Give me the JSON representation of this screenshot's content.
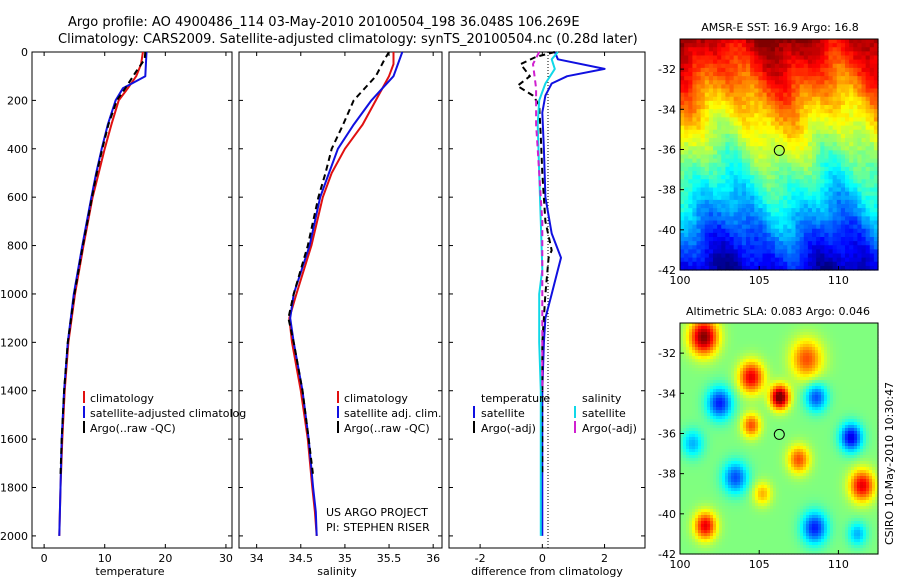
{
  "figure": {
    "title_line1": "Argo profile: AO 4900486_114 03-May-2010 20100504_198 36.048S 106.269E",
    "title_line2": "Climatology: CARS2009. Satellite-adjusted climatology: synTS_20100504.nc (0.28d later)",
    "credit": "CSIRO 10-May-2010 10:30:47"
  },
  "colors": {
    "climatology": "#e01010",
    "satellite": "#1010e0",
    "argo": "#000000",
    "cyan": "#10d8e8",
    "magenta": "#d020d0"
  },
  "chart_data": [
    {
      "type": "line",
      "name": "temperature",
      "xlabel": "temperature",
      "xlim": [
        -2,
        31
      ],
      "ylim": [
        0,
        2050
      ],
      "x_ticks": [
        0,
        10,
        20,
        30
      ],
      "y_ticks": [
        0,
        200,
        400,
        600,
        800,
        1000,
        1200,
        1400,
        1600,
        1800,
        2000
      ],
      "legend": [
        "climatology",
        "satellite-adjusted climatolog",
        "Argo(..raw -QC)"
      ],
      "series": [
        {
          "name": "climatology",
          "color": "#e01010",
          "x": [
            16.3,
            16.0,
            15.2,
            13.8,
            12.3,
            11.1,
            10.0,
            9.0,
            8.0,
            6.5,
            5.1,
            4.0,
            3.4,
            3.0,
            2.7,
            2.6,
            2.5
          ],
          "y": [
            0,
            50,
            100,
            150,
            200,
            300,
            400,
            500,
            600,
            800,
            1000,
            1200,
            1400,
            1600,
            1800,
            1900,
            2000
          ]
        },
        {
          "name": "satellite-adjusted climatolog",
          "color": "#1010e0",
          "x": [
            16.9,
            16.8,
            16.7,
            13.0,
            11.8,
            10.5,
            9.5,
            8.6,
            7.8,
            6.3,
            4.9,
            3.9,
            3.3,
            2.9,
            2.7,
            2.6,
            2.5
          ],
          "y": [
            0,
            50,
            100,
            150,
            200,
            300,
            400,
            500,
            600,
            800,
            1000,
            1200,
            1400,
            1600,
            1800,
            1900,
            2000
          ]
        },
        {
          "name": "Argo(..raw -QC)",
          "color": "#000000",
          "dash": true,
          "x": [
            16.7,
            16.6,
            15.2,
            13.4,
            12.0,
            10.6,
            9.6,
            8.7,
            7.9,
            6.4,
            5.0,
            3.9,
            3.3,
            2.9,
            2.7
          ],
          "y": [
            0,
            30,
            80,
            150,
            200,
            300,
            400,
            500,
            600,
            800,
            1000,
            1200,
            1400,
            1600,
            1750
          ]
        }
      ]
    },
    {
      "type": "line",
      "name": "salinity",
      "xlabel": "salinity",
      "xlim": [
        33.8,
        36.1
      ],
      "ylim": [
        0,
        2050
      ],
      "x_ticks": [
        34,
        34.5,
        35,
        35.5,
        36
      ],
      "legend": [
        "climatology",
        "satellite adj. clim.",
        "Argo(..raw -QC)"
      ],
      "annotation": [
        "US ARGO PROJECT",
        "PI: STEPHEN RISER"
      ],
      "series": [
        {
          "name": "climatology",
          "color": "#e01010",
          "x": [
            35.55,
            35.55,
            35.5,
            35.35,
            35.2,
            35.0,
            34.85,
            34.75,
            34.62,
            34.45,
            34.37,
            34.4,
            34.5,
            34.58,
            34.63,
            34.66,
            34.68
          ],
          "y": [
            0,
            50,
            100,
            200,
            300,
            400,
            500,
            600,
            800,
            1000,
            1100,
            1200,
            1400,
            1600,
            1800,
            1900,
            2000
          ]
        },
        {
          "name": "satellite adj. clim.",
          "color": "#1010e0",
          "x": [
            35.65,
            35.6,
            35.55,
            35.3,
            35.1,
            34.92,
            34.82,
            34.72,
            34.6,
            34.42,
            34.38,
            34.42,
            34.52,
            34.59,
            34.64,
            34.67,
            34.68
          ],
          "y": [
            0,
            50,
            100,
            200,
            300,
            400,
            500,
            600,
            800,
            1000,
            1100,
            1200,
            1400,
            1600,
            1800,
            1900,
            2000
          ]
        },
        {
          "name": "Argo(..raw -QC)",
          "color": "#000000",
          "dash": true,
          "x": [
            35.5,
            35.45,
            35.35,
            35.1,
            34.98,
            34.85,
            34.78,
            34.7,
            34.58,
            34.42,
            34.36,
            34.42,
            34.52,
            34.59,
            34.64
          ],
          "y": [
            0,
            30,
            100,
            200,
            300,
            400,
            500,
            600,
            800,
            1000,
            1100,
            1200,
            1400,
            1600,
            1750
          ]
        }
      ]
    },
    {
      "type": "line",
      "name": "difference",
      "xlabel": "difference from climatology",
      "xlim": [
        -3,
        3.3
      ],
      "ylim": [
        0,
        2050
      ],
      "x_ticks": [
        -2,
        0,
        2
      ],
      "legend": [
        "temperature",
        "satellite",
        "Argo(-adj)",
        "salinity",
        "satellite",
        "Argo(-adj)"
      ],
      "series": [
        {
          "name": "temperature satellite",
          "color": "#1010e0",
          "x": [
            0.4,
            0.5,
            2.0,
            0.8,
            0.3,
            0.1,
            0.0,
            0.05,
            0.1,
            0.3,
            0.6,
            0.5,
            0.3,
            0.1,
            0.05,
            0.0,
            0.0,
            0.0,
            0.0
          ],
          "y": [
            0,
            30,
            70,
            100,
            130,
            180,
            250,
            400,
            600,
            750,
            850,
            900,
            1000,
            1100,
            1200,
            1400,
            1600,
            1800,
            2000
          ]
        },
        {
          "name": "temperature Argo(-adj)",
          "color": "#000000",
          "dash": true,
          "x": [
            0.4,
            -0.2,
            -0.7,
            -0.4,
            -0.8,
            -0.3,
            -0.1,
            -0.05,
            0.0,
            0.1,
            0.3,
            0.2,
            0.1,
            0.0,
            0.0
          ],
          "y": [
            0,
            20,
            50,
            100,
            140,
            180,
            220,
            350,
            500,
            700,
            820,
            850,
            1000,
            1200,
            1750
          ]
        },
        {
          "name": "salinity satellite",
          "color": "#10d8e8",
          "x": [
            0.5,
            0.3,
            0.4,
            0.1,
            -0.1,
            -0.15,
            -0.1,
            -0.05,
            0.0,
            -0.1,
            -0.1,
            -0.05,
            -0.05,
            -0.05,
            -0.05
          ],
          "y": [
            0,
            30,
            70,
            130,
            200,
            300,
            500,
            700,
            900,
            1000,
            1200,
            1400,
            1600,
            1800,
            2000
          ]
        },
        {
          "name": "salinity Argo(-adj)",
          "color": "#d020d0",
          "dash": true,
          "x": [
            -0.1,
            -0.3,
            -0.2,
            -0.2,
            -0.15,
            -0.1,
            0.0,
            0.0,
            0.0
          ],
          "y": [
            0,
            50,
            150,
            300,
            400,
            500,
            700,
            1000,
            1400
          ]
        }
      ]
    },
    {
      "type": "heatmap",
      "name": "AMSR-E SST",
      "title": "AMSR-E SST: 16.9 Argo: 16.8",
      "xlim": [
        100,
        112.5
      ],
      "ylim": [
        -42,
        -30.5
      ],
      "x_ticks": [
        100,
        105,
        110
      ],
      "y_ticks": [
        -32,
        -34,
        -36,
        -38,
        -40,
        -42
      ],
      "argo_position": [
        106.269,
        -36.048
      ]
    },
    {
      "type": "heatmap",
      "name": "Altimetric SLA",
      "title": "Altimetric SLA: 0.083 Argo: 0.046",
      "xlim": [
        100,
        112.5
      ],
      "ylim": [
        -42,
        -30.5
      ],
      "x_ticks": [
        100,
        105,
        110
      ],
      "y_ticks": [
        -32,
        -34,
        -36,
        -38,
        -40,
        -42
      ],
      "argo_position": [
        106.269,
        -36.048
      ]
    }
  ]
}
